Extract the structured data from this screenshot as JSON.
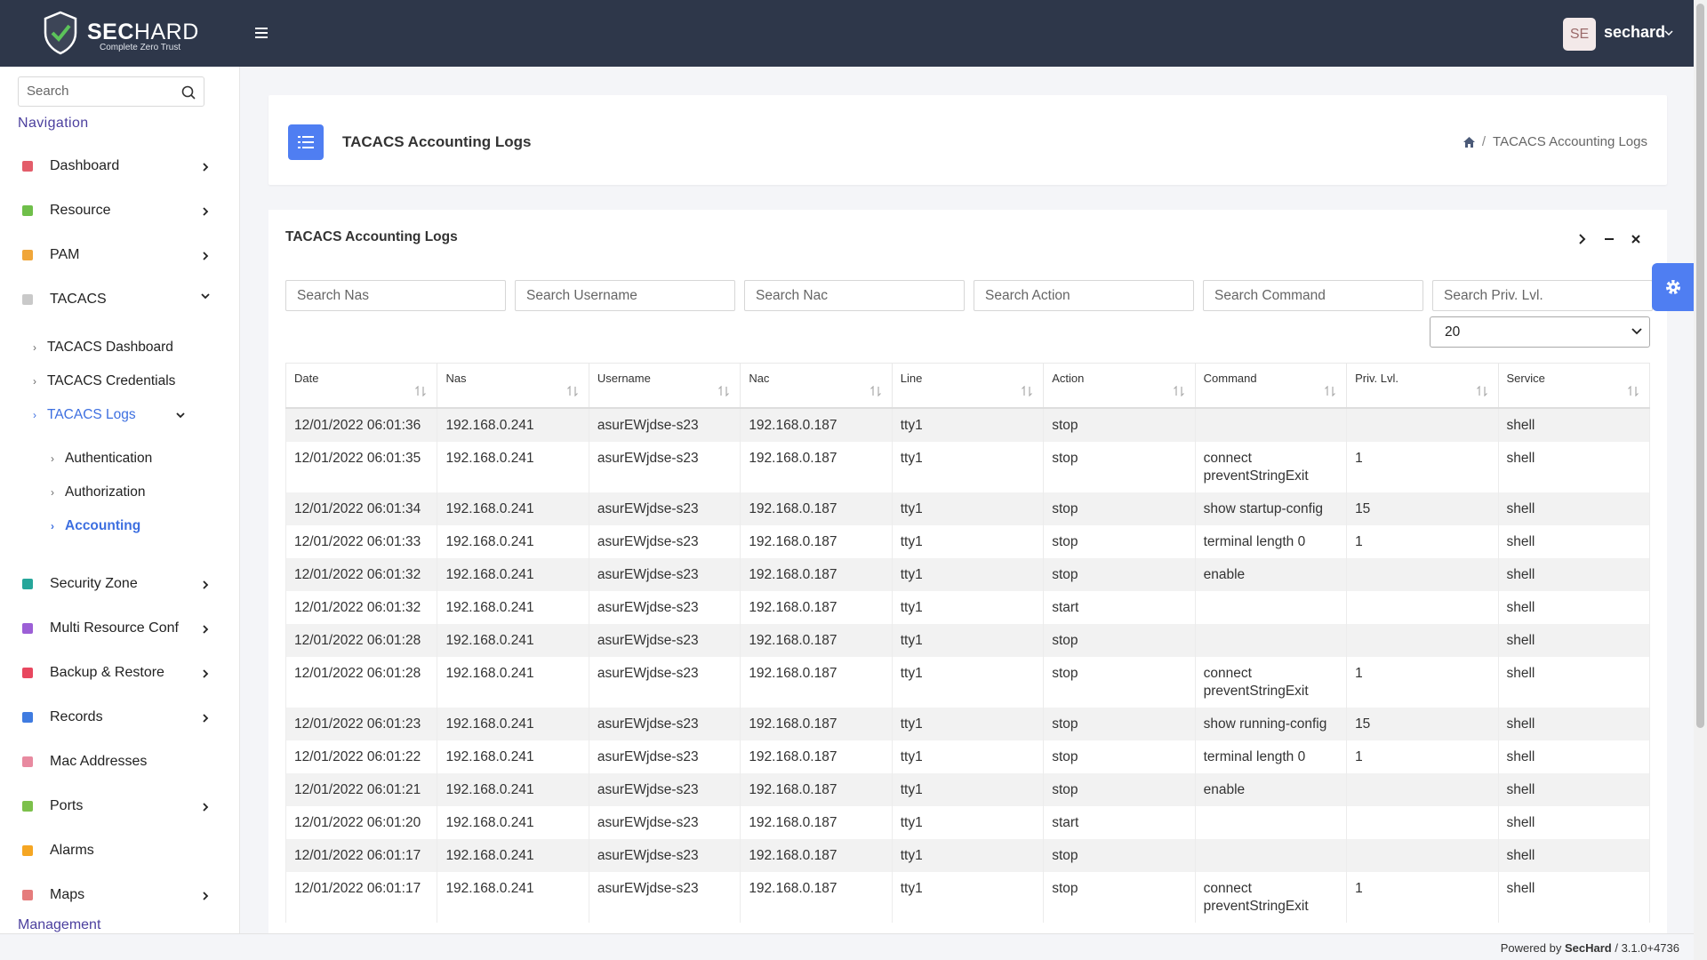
{
  "header": {
    "brand_bold": "SEC",
    "brand_light": "HARD",
    "tagline": "Complete Zero Trust",
    "avatar": "SE",
    "user": "sechard"
  },
  "sidebar": {
    "search_placeholder": "Search",
    "section": "Navigation",
    "items": [
      {
        "label": "Dashboard",
        "icon_color": "#e35d6a",
        "has_submenu": true
      },
      {
        "label": "Resource",
        "icon_color": "#6fbf4a",
        "has_submenu": true
      },
      {
        "label": "PAM",
        "icon_color": "#f0a63a",
        "has_submenu": true
      },
      {
        "label": "TACACS",
        "icon_color": "#c9c9c9",
        "has_submenu": true,
        "expanded": true,
        "children": [
          {
            "label": "TACACS Dashboard"
          },
          {
            "label": "TACACS Credentials"
          },
          {
            "label": "TACACS Logs",
            "active": true,
            "expanded": true,
            "children": [
              {
                "label": "Authentication"
              },
              {
                "label": "Authorization"
              },
              {
                "label": "Accounting",
                "active": true
              }
            ]
          }
        ]
      },
      {
        "label": "Security Zone",
        "icon_color": "#26a69a",
        "has_submenu": true
      },
      {
        "label": "Multi Resource Conf",
        "icon_color": "#9c5fd6",
        "has_submenu": true
      },
      {
        "label": "Backup & Restore",
        "icon_color": "#e8475f",
        "has_submenu": true
      },
      {
        "label": "Records",
        "icon_color": "#3f7be0",
        "has_submenu": true
      },
      {
        "label": "Mac Addresses",
        "icon_color": "#e88aa0",
        "has_submenu": false
      },
      {
        "label": "Ports",
        "icon_color": "#7cc04b",
        "has_submenu": true
      },
      {
        "label": "Alarms",
        "icon_color": "#f5a623",
        "has_submenu": false
      },
      {
        "label": "Maps",
        "icon_color": "#e57c7c",
        "has_submenu": true
      }
    ],
    "section_2": "Management"
  },
  "page_header": {
    "title": "TACACS Accounting Logs",
    "breadcrumb": "TACACS Accounting Logs"
  },
  "card": {
    "title": "TACACS Accounting Logs",
    "filters": [
      "Search Nas",
      "Search Username",
      "Search Nac",
      "Search Action",
      "Search Command",
      "Search Priv. Lvl."
    ],
    "page_size": "20"
  },
  "table": {
    "columns": [
      "Date",
      "Nas",
      "Username",
      "Nac",
      "Line",
      "Action",
      "Command",
      "Priv. Lvl.",
      "Service"
    ],
    "rows": [
      [
        "12/01/2022 06:01:36",
        "192.168.0.241",
        "asurEWjdse-s23",
        "192.168.0.187",
        "tty1",
        "stop",
        null,
        null,
        "shell"
      ],
      [
        "12/01/2022 06:01:35",
        "192.168.0.241",
        "asurEWjdse-s23",
        "192.168.0.187",
        "tty1",
        "stop",
        "connect preventStringExit",
        1,
        "shell"
      ],
      [
        "12/01/2022 06:01:34",
        "192.168.0.241",
        "asurEWjdse-s23",
        "192.168.0.187",
        "tty1",
        "stop",
        "show startup-config",
        15,
        "shell"
      ],
      [
        "12/01/2022 06:01:33",
        "192.168.0.241",
        "asurEWjdse-s23",
        "192.168.0.187",
        "tty1",
        "stop",
        "terminal length 0",
        1,
        "shell"
      ],
      [
        "12/01/2022 06:01:32",
        "192.168.0.241",
        "asurEWjdse-s23",
        "192.168.0.187",
        "tty1",
        "stop",
        "enable",
        null,
        "shell"
      ],
      [
        "12/01/2022 06:01:32",
        "192.168.0.241",
        "asurEWjdse-s23",
        "192.168.0.187",
        "tty1",
        "start",
        null,
        null,
        "shell"
      ],
      [
        "12/01/2022 06:01:28",
        "192.168.0.241",
        "asurEWjdse-s23",
        "192.168.0.187",
        "tty1",
        "stop",
        null,
        null,
        "shell"
      ],
      [
        "12/01/2022 06:01:28",
        "192.168.0.241",
        "asurEWjdse-s23",
        "192.168.0.187",
        "tty1",
        "stop",
        "connect preventStringExit",
        1,
        "shell"
      ],
      [
        "12/01/2022 06:01:23",
        "192.168.0.241",
        "asurEWjdse-s23",
        "192.168.0.187",
        "tty1",
        "stop",
        "show running-config",
        15,
        "shell"
      ],
      [
        "12/01/2022 06:01:22",
        "192.168.0.241",
        "asurEWjdse-s23",
        "192.168.0.187",
        "tty1",
        "stop",
        "terminal length 0",
        1,
        "shell"
      ],
      [
        "12/01/2022 06:01:21",
        "192.168.0.241",
        "asurEWjdse-s23",
        "192.168.0.187",
        "tty1",
        "stop",
        "enable",
        null,
        "shell"
      ],
      [
        "12/01/2022 06:01:20",
        "192.168.0.241",
        "asurEWjdse-s23",
        "192.168.0.187",
        "tty1",
        "start",
        null,
        null,
        "shell"
      ],
      [
        "12/01/2022 06:01:17",
        "192.168.0.241",
        "asurEWjdse-s23",
        "192.168.0.187",
        "tty1",
        "stop",
        null,
        null,
        "shell"
      ],
      [
        "12/01/2022 06:01:17",
        "192.168.0.241",
        "asurEWjdse-s23",
        "192.168.0.187",
        "tty1",
        "stop",
        "connect preventStringExit",
        1,
        "shell"
      ]
    ]
  },
  "footer": {
    "prefix": "Powered by",
    "brand": "SecHard",
    "version": "/ 3.1.0+4736"
  }
}
